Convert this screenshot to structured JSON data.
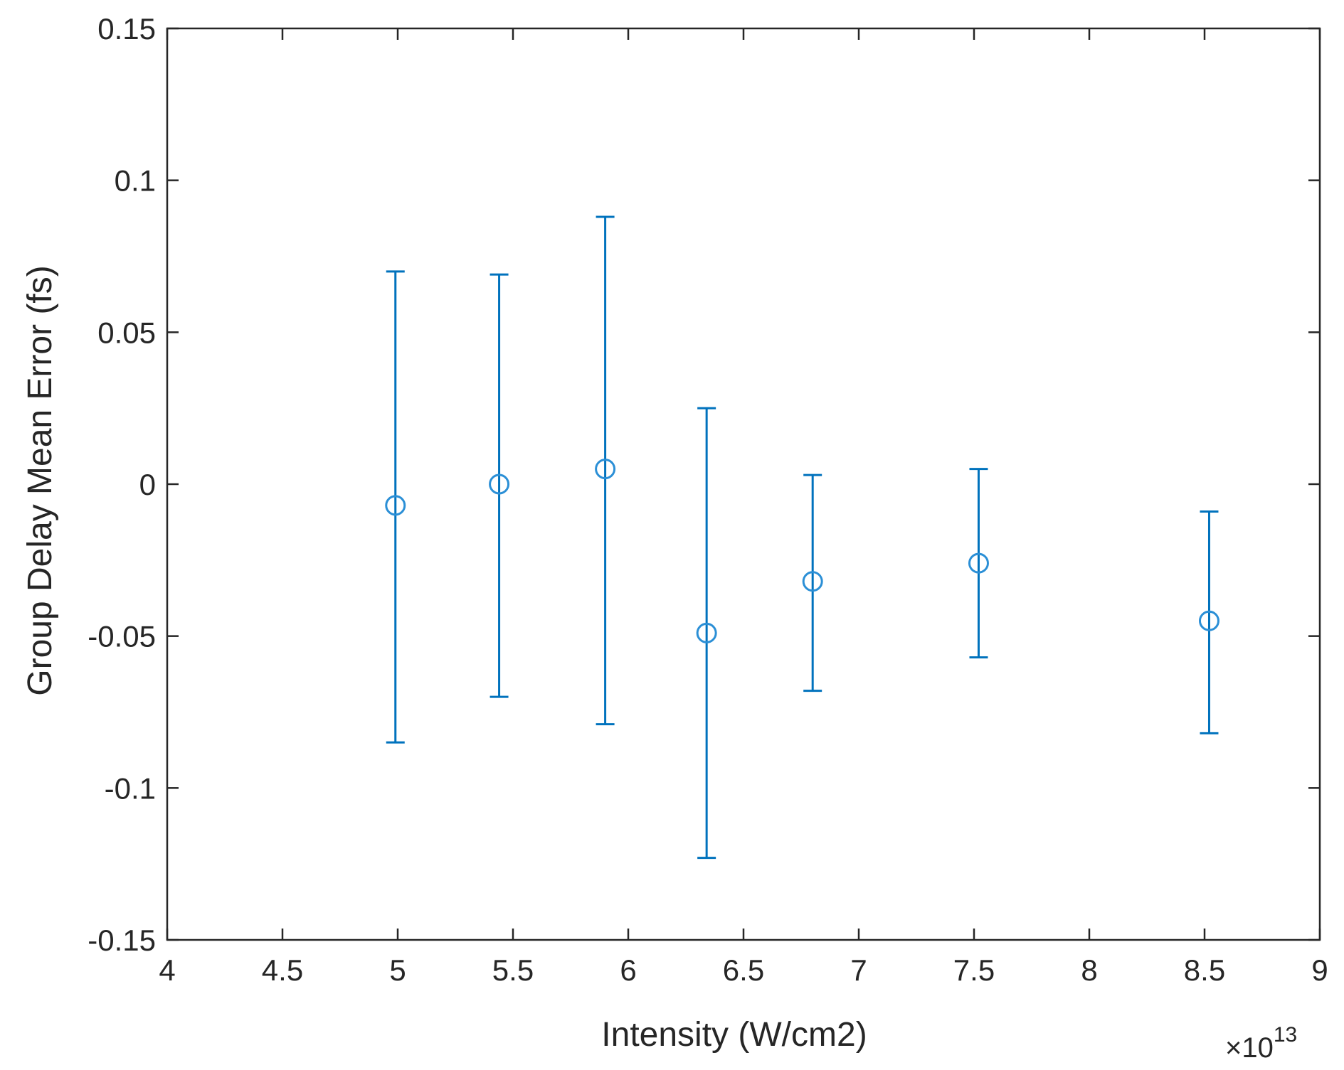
{
  "chart_data": {
    "type": "scatter",
    "title": "",
    "xlabel": "Intensity (W/cm2)",
    "ylabel": "Group Delay Mean Error (fs)",
    "x_exponent_base": "×10",
    "x_exponent_power": "13",
    "xlim": [
      4,
      9
    ],
    "ylim": [
      -0.15,
      0.15
    ],
    "xticks": [
      4,
      4.5,
      5,
      5.5,
      6,
      6.5,
      7,
      7.5,
      8,
      8.5,
      9
    ],
    "xtick_labels": [
      "4",
      "4.5",
      "5",
      "5.5",
      "6",
      "6.5",
      "7",
      "7.5",
      "8",
      "8.5",
      "9"
    ],
    "yticks": [
      -0.15,
      -0.1,
      -0.05,
      0,
      0.05,
      0.1,
      0.15
    ],
    "ytick_labels": [
      "-0.15",
      "-0.1",
      "-0.05",
      "0",
      "0.05",
      "0.1",
      "0.15"
    ],
    "grid": false,
    "legend": "none",
    "series": [
      {
        "marker": "circle",
        "color": "#0072BD",
        "marker_color": "#2B8FD6",
        "x": [
          4.99,
          5.44,
          5.9,
          6.34,
          6.8,
          7.52,
          8.52
        ],
        "y": [
          -0.007,
          0.0,
          0.005,
          -0.049,
          -0.032,
          -0.026,
          -0.045
        ],
        "err_low": [
          -0.085,
          -0.07,
          -0.079,
          -0.123,
          -0.068,
          -0.057,
          -0.082
        ],
        "err_high": [
          0.07,
          0.069,
          0.088,
          0.025,
          0.003,
          0.005,
          -0.009
        ]
      }
    ],
    "colors": {
      "axes": "#262626",
      "text": "#262626",
      "background": "#ffffff"
    }
  }
}
